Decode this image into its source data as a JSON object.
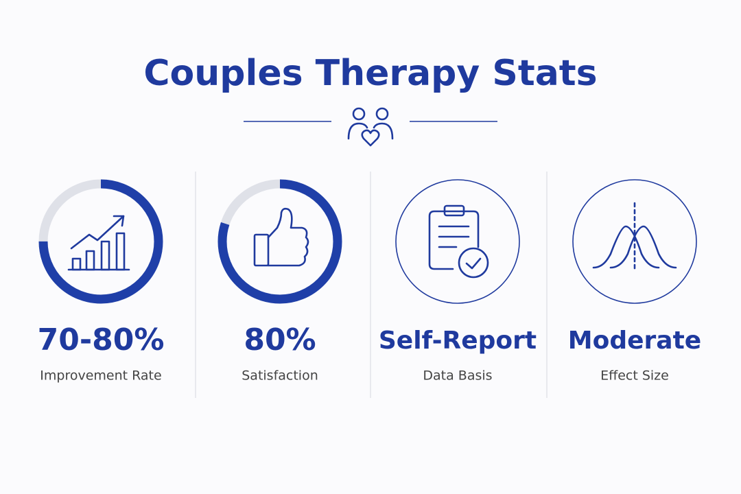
{
  "header": {
    "title": "Couples Therapy Stats"
  },
  "stats": [
    {
      "value": "70-80%",
      "label": "Improvement Rate",
      "progress": 75
    },
    {
      "value": "80%",
      "label": "Satisfaction",
      "progress": 80
    },
    {
      "value": "Self-Report",
      "label": "Data Basis"
    },
    {
      "value": "Moderate",
      "label": "Effect Size"
    }
  ]
}
